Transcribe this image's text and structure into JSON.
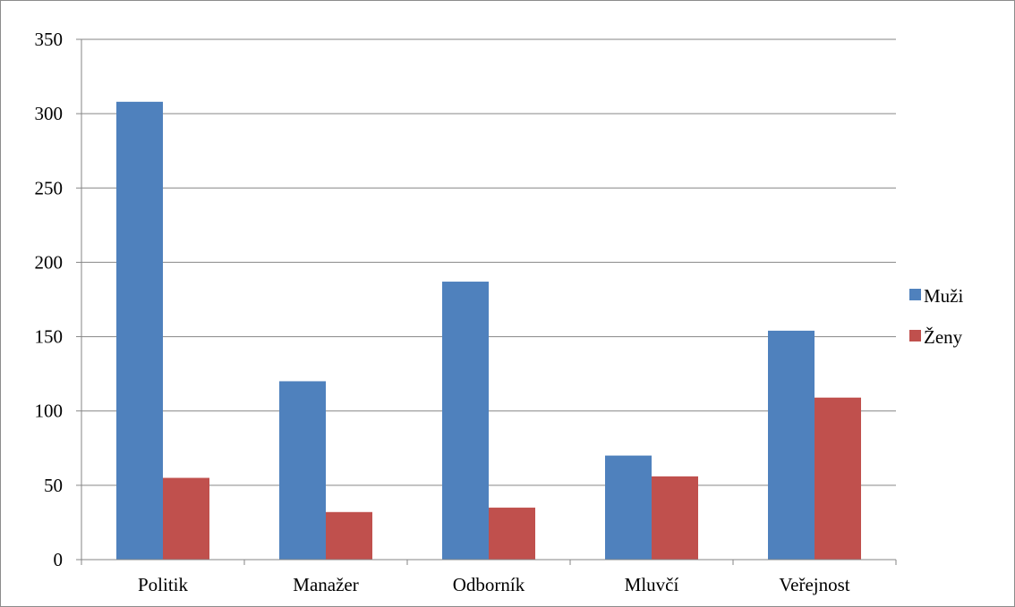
{
  "chart_data": {
    "type": "bar",
    "title": "",
    "xlabel": "",
    "ylabel": "",
    "categories": [
      "Politik",
      "Manažer",
      "Odborník",
      "Mluvčí",
      "Veřejnost"
    ],
    "series": [
      {
        "name": "Muži",
        "color": "#4f81bd",
        "values": [
          308,
          120,
          187,
          70,
          154
        ]
      },
      {
        "name": "Ženy",
        "color": "#c0504d",
        "values": [
          55,
          32,
          35,
          56,
          109
        ]
      }
    ],
    "ylim": [
      0,
      350
    ],
    "yticks": [
      0,
      50,
      100,
      150,
      200,
      250,
      300,
      350
    ],
    "grid": true,
    "legend_position": "right"
  }
}
